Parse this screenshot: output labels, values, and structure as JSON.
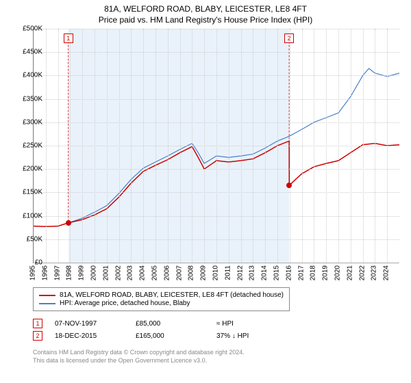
{
  "title": {
    "line1": "81A, WELFORD ROAD, BLABY, LEICESTER, LE8 4FT",
    "line2": "Price paid vs. HM Land Registry's House Price Index (HPI)"
  },
  "chart": {
    "type": "line",
    "background_color": "#ffffff",
    "grid_color": "#cccccc",
    "axis_color": "#888888",
    "shade_color": "#dbe9f7",
    "x_min": 1995,
    "x_max": 2025,
    "y_min": 0,
    "y_max": 500000,
    "y_ticks": [
      0,
      50000,
      100000,
      150000,
      200000,
      250000,
      300000,
      350000,
      400000,
      450000,
      500000
    ],
    "y_tick_labels": [
      "£0",
      "£50K",
      "£100K",
      "£150K",
      "£200K",
      "£250K",
      "£300K",
      "£350K",
      "£400K",
      "£450K",
      "£500K"
    ],
    "x_ticks": [
      1995,
      1996,
      1997,
      1998,
      1999,
      2000,
      2001,
      2002,
      2003,
      2004,
      2005,
      2006,
      2007,
      2008,
      2009,
      2010,
      2011,
      2012,
      2013,
      2014,
      2015,
      2016,
      2017,
      2018,
      2019,
      2020,
      2021,
      2022,
      2023,
      2024
    ],
    "shade_start": 1997.85,
    "shade_end": 2015.96,
    "label_fontsize": 10,
    "series": {
      "property": {
        "color": "#cc0000",
        "line_width": 1.5,
        "data": [
          [
            1995.0,
            78000
          ],
          [
            1996.0,
            77000
          ],
          [
            1997.0,
            78000
          ],
          [
            1997.85,
            85000
          ],
          [
            1999.0,
            92000
          ],
          [
            2000.0,
            102000
          ],
          [
            2001.0,
            115000
          ],
          [
            2002.0,
            140000
          ],
          [
            2003.0,
            170000
          ],
          [
            2004.0,
            195000
          ],
          [
            2005.0,
            208000
          ],
          [
            2006.0,
            220000
          ],
          [
            2007.0,
            235000
          ],
          [
            2008.0,
            248000
          ],
          [
            2008.5,
            225000
          ],
          [
            2009.0,
            200000
          ],
          [
            2010.0,
            218000
          ],
          [
            2011.0,
            215000
          ],
          [
            2012.0,
            218000
          ],
          [
            2013.0,
            222000
          ],
          [
            2014.0,
            235000
          ],
          [
            2015.0,
            250000
          ],
          [
            2015.96,
            260000
          ],
          [
            2015.97,
            165000
          ],
          [
            2016.5,
            178000
          ],
          [
            2017.0,
            190000
          ],
          [
            2018.0,
            205000
          ],
          [
            2019.0,
            212000
          ],
          [
            2020.0,
            218000
          ],
          [
            2021.0,
            235000
          ],
          [
            2022.0,
            252000
          ],
          [
            2023.0,
            255000
          ],
          [
            2024.0,
            250000
          ],
          [
            2025.0,
            252000
          ]
        ]
      },
      "hpi": {
        "color": "#4a7fc4",
        "line_width": 1.2,
        "data": [
          [
            1997.85,
            85000
          ],
          [
            1999.0,
            95000
          ],
          [
            2000.0,
            108000
          ],
          [
            2001.0,
            122000
          ],
          [
            2002.0,
            148000
          ],
          [
            2003.0,
            178000
          ],
          [
            2004.0,
            202000
          ],
          [
            2005.0,
            215000
          ],
          [
            2006.0,
            228000
          ],
          [
            2007.0,
            242000
          ],
          [
            2008.0,
            255000
          ],
          [
            2008.5,
            235000
          ],
          [
            2009.0,
            212000
          ],
          [
            2010.0,
            228000
          ],
          [
            2011.0,
            225000
          ],
          [
            2012.0,
            228000
          ],
          [
            2013.0,
            232000
          ],
          [
            2014.0,
            245000
          ],
          [
            2015.0,
            260000
          ],
          [
            2015.96,
            270000
          ],
          [
            2017.0,
            285000
          ],
          [
            2018.0,
            300000
          ],
          [
            2019.0,
            310000
          ],
          [
            2020.0,
            320000
          ],
          [
            2021.0,
            355000
          ],
          [
            2022.0,
            400000
          ],
          [
            2022.5,
            415000
          ],
          [
            2023.0,
            405000
          ],
          [
            2024.0,
            398000
          ],
          [
            2025.0,
            405000
          ]
        ]
      }
    },
    "markers": [
      {
        "n": 1,
        "x": 1997.85,
        "y": 85000,
        "box_y": 480000,
        "color": "#cc0000"
      },
      {
        "n": 2,
        "x": 2015.96,
        "y": 165000,
        "box_y": 480000,
        "color": "#cc0000"
      }
    ]
  },
  "legend": {
    "items": [
      {
        "color": "#cc0000",
        "label": "81A, WELFORD ROAD, BLABY, LEICESTER, LE8 4FT (detached house)"
      },
      {
        "color": "#4a7fc4",
        "label": "HPI: Average price, detached house, Blaby"
      }
    ]
  },
  "sales": [
    {
      "n": 1,
      "color": "#cc0000",
      "date": "07-NOV-1997",
      "price": "£85,000",
      "vs_hpi": "≈ HPI"
    },
    {
      "n": 2,
      "color": "#cc0000",
      "date": "18-DEC-2015",
      "price": "£165,000",
      "vs_hpi": "37% ↓ HPI"
    }
  ],
  "footer": {
    "line1": "Contains HM Land Registry data © Crown copyright and database right 2024.",
    "line2": "This data is licensed under the Open Government Licence v3.0."
  }
}
